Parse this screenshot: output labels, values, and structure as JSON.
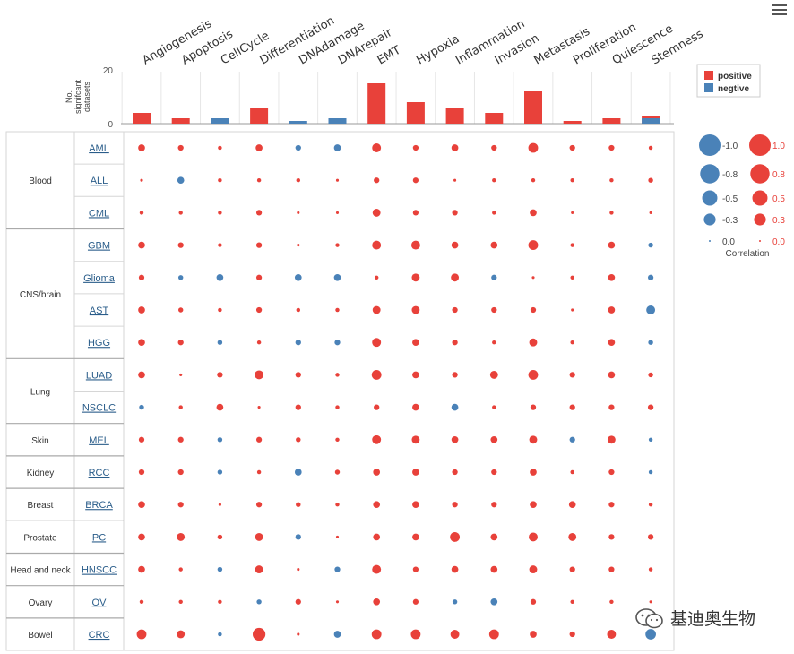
{
  "chart_data": {
    "type": "bubble-matrix",
    "states": [
      "Angiogenesis",
      "Apoptosis",
      "CellCycle",
      "Differentiation",
      "DNAdamage",
      "DNArepair",
      "EMT",
      "Hypoxia",
      "Inflammation",
      "Invasion",
      "Metastasis",
      "Proliferation",
      "Quiescence",
      "Stemness"
    ],
    "bar_axis_label": "No. signifcant datasets",
    "bar_axis_ticks": [
      0,
      20
    ],
    "bar_ylim": [
      0,
      20
    ],
    "bar_series": [
      {
        "name": "positive",
        "color": "#e8413a",
        "values": [
          4,
          2,
          1,
          6,
          0,
          1,
          15,
          8,
          6,
          4,
          12,
          1,
          2,
          3
        ]
      },
      {
        "name": "negtive",
        "color": "#4a82b8",
        "values": [
          0,
          0,
          2,
          0,
          1,
          2,
          0,
          0,
          0,
          0,
          0,
          0,
          0,
          2
        ]
      }
    ],
    "groups": [
      {
        "name": "Blood",
        "cancers": [
          "AML",
          "ALL",
          "CML"
        ]
      },
      {
        "name": "CNS/brain",
        "cancers": [
          "GBM",
          "Glioma",
          "AST",
          "HGG"
        ]
      },
      {
        "name": "Lung",
        "cancers": [
          "LUAD",
          "NSCLC"
        ]
      },
      {
        "name": "Skin",
        "cancers": [
          "MEL"
        ]
      },
      {
        "name": "Kidney",
        "cancers": [
          "RCC"
        ]
      },
      {
        "name": "Breast",
        "cancers": [
          "BRCA"
        ]
      },
      {
        "name": "Prostate",
        "cancers": [
          "PC"
        ]
      },
      {
        "name": "Head and neck",
        "cancers": [
          "HNSCC"
        ]
      },
      {
        "name": "Ovary",
        "cancers": [
          "OV"
        ]
      },
      {
        "name": "Bowel",
        "cancers": [
          "CRC"
        ]
      }
    ],
    "correlations": [
      [
        0.3,
        0.2,
        0.1,
        0.3,
        -0.2,
        -0.3,
        0.5,
        0.2,
        0.3,
        0.2,
        0.6,
        0.2,
        0.2,
        0.1
      ],
      [
        0.05,
        -0.3,
        0.1,
        0.1,
        0.1,
        0.05,
        0.2,
        0.2,
        0.05,
        0.1,
        0.1,
        0.1,
        0.1,
        0.15
      ],
      [
        0.1,
        0.1,
        0.1,
        0.2,
        0.05,
        0.05,
        0.4,
        0.2,
        0.2,
        0.1,
        0.3,
        0.05,
        0.1,
        0.05
      ],
      [
        0.3,
        0.2,
        0.1,
        0.2,
        0.05,
        0.1,
        0.5,
        0.5,
        0.3,
        0.3,
        0.6,
        0.1,
        0.3,
        -0.15
      ],
      [
        0.2,
        -0.15,
        -0.3,
        0.2,
        -0.3,
        -0.3,
        0.1,
        0.4,
        0.4,
        -0.2,
        0.05,
        0.1,
        0.3,
        -0.2
      ],
      [
        0.3,
        0.15,
        0.1,
        0.2,
        0.1,
        0.1,
        0.4,
        0.4,
        0.2,
        0.2,
        0.2,
        0.05,
        0.3,
        -0.5
      ],
      [
        0.3,
        0.2,
        -0.15,
        0.1,
        -0.2,
        -0.2,
        0.5,
        0.3,
        0.2,
        0.1,
        0.4,
        0.1,
        0.3,
        -0.15
      ],
      [
        0.3,
        0.05,
        0.2,
        0.5,
        0.2,
        0.1,
        0.6,
        0.3,
        0.2,
        0.4,
        0.6,
        0.2,
        0.3,
        0.15
      ],
      [
        -0.15,
        0.1,
        0.3,
        0.05,
        0.2,
        0.1,
        0.2,
        0.3,
        -0.3,
        0.1,
        0.2,
        0.2,
        0.2,
        0.2
      ],
      [
        0.2,
        0.2,
        -0.15,
        0.2,
        0.15,
        0.1,
        0.5,
        0.4,
        0.3,
        0.3,
        0.4,
        -0.2,
        0.4,
        -0.1
      ],
      [
        0.2,
        0.2,
        -0.15,
        0.1,
        -0.3,
        0.15,
        0.3,
        0.3,
        0.2,
        0.2,
        0.3,
        0.1,
        0.2,
        -0.1
      ],
      [
        0.3,
        0.2,
        0.05,
        0.2,
        0.15,
        0.1,
        0.3,
        0.3,
        0.2,
        0.2,
        0.3,
        0.3,
        0.2,
        0.1
      ],
      [
        0.3,
        0.4,
        0.15,
        0.4,
        -0.2,
        0.05,
        0.3,
        0.3,
        0.6,
        0.3,
        0.5,
        0.4,
        0.2,
        0.2
      ],
      [
        0.3,
        0.1,
        -0.15,
        0.4,
        0.05,
        -0.2,
        0.5,
        0.2,
        0.3,
        0.3,
        0.4,
        0.2,
        0.2,
        0.1
      ],
      [
        0.1,
        0.1,
        0.1,
        -0.15,
        0.2,
        0.05,
        0.3,
        0.2,
        -0.15,
        -0.3,
        0.2,
        0.1,
        0.1,
        0.05
      ],
      [
        0.6,
        0.4,
        -0.1,
        0.9,
        0.05,
        -0.3,
        0.6,
        0.6,
        0.5,
        0.6,
        0.3,
        0.2,
        0.5,
        -0.7
      ]
    ],
    "size_legend": {
      "negative_labels": [
        "-1.0",
        "-0.8",
        "-0.5",
        "-0.3",
        "0.0"
      ],
      "positive_labels": [
        "1.0",
        "0.8",
        "0.5",
        "0.3",
        "0.0"
      ],
      "values": [
        1.0,
        0.8,
        0.5,
        0.3,
        0.0
      ],
      "title": "Correlation"
    },
    "colors": {
      "positive": "#e8413a",
      "negative": "#4a82b8",
      "grid": "#d6d6d6",
      "link": "#2a5d8a"
    }
  },
  "watermark": {
    "text": "基迪奥生物",
    "icon": "wechat-icon"
  },
  "toolbar": {
    "menu_icon": "hamburger-menu-icon"
  }
}
